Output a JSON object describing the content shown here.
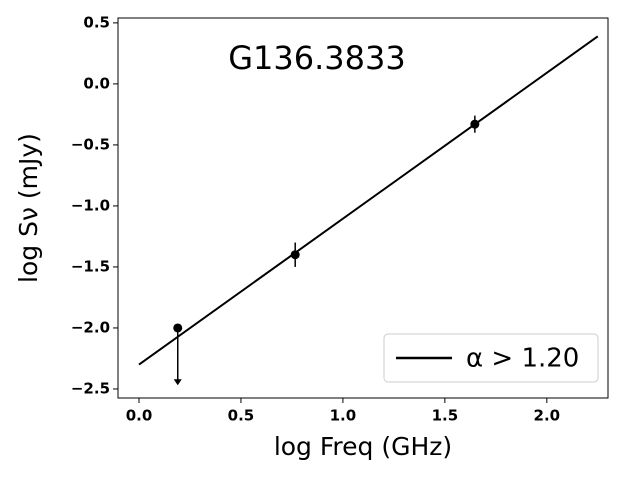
{
  "chart_data": {
    "type": "scatter",
    "annotation": "G136.3833",
    "x_label": "log Freq (GHz)",
    "y_label": "log Sν (mJy)",
    "xlim": [
      -0.103,
      2.3
    ],
    "ylim": [
      -2.574,
      0.54
    ],
    "xticks": [
      {
        "value": 0,
        "label": "0.0"
      },
      0.5,
      {
        "value": 1,
        "label": "1.0"
      },
      1.5,
      {
        "value": 2,
        "label": "2.0"
      }
    ],
    "yticks": [
      0.5,
      {
        "value": 0,
        "label": "0.0"
      },
      {
        "value": -0.5,
        "label": "−0.5"
      },
      {
        "value": -1,
        "label": "−1.0"
      },
      {
        "value": -1.5,
        "label": "−1.5"
      },
      {
        "value": -2,
        "label": "−2.0"
      },
      {
        "value": -2.5,
        "label": "−2.5"
      }
    ],
    "series": [
      {
        "color": "#000000",
        "x": [
          0.19,
          0.766,
          1.647
        ],
        "values": [
          -2.0,
          -1.4,
          -0.33
        ],
        "yerr": [
          0.47,
          0.1,
          0.07
        ],
        "uplims": [
          true,
          false,
          false
        ]
      },
      {
        "name": "α > 1.20",
        "kind": "line",
        "color": "#000000",
        "x": [
          0,
          2.25
        ],
        "values": [
          -2.3,
          0.39
        ]
      }
    ],
    "legend": "lower right"
  }
}
